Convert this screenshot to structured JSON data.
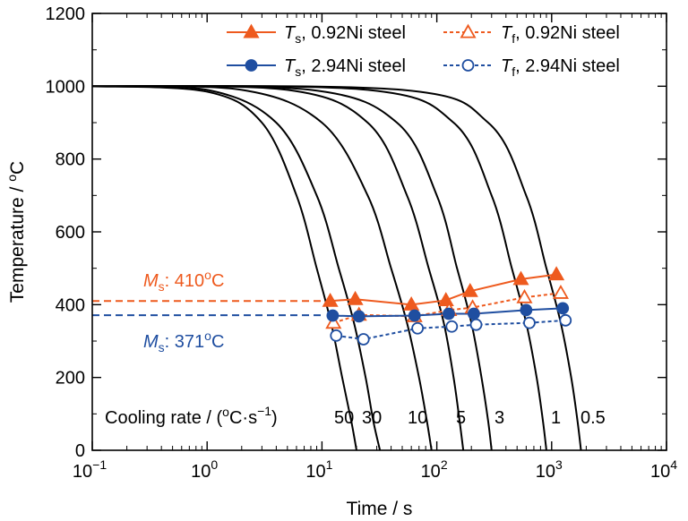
{
  "chart_data": {
    "type": "line",
    "x_scale": "log",
    "xlabel": "Time / s",
    "ylabel": "Temperature / °C",
    "xlim": [
      0.1,
      10000
    ],
    "ylim": [
      0,
      1200
    ],
    "x_ticks": [
      {
        "base": "10",
        "exp": "−1",
        "value": 0.1
      },
      {
        "base": "10",
        "exp": "0",
        "value": 1
      },
      {
        "base": "10",
        "exp": "1",
        "value": 10
      },
      {
        "base": "10",
        "exp": "2",
        "value": 100
      },
      {
        "base": "10",
        "exp": "3",
        "value": 1000
      },
      {
        "base": "10",
        "exp": "4",
        "value": 10000
      }
    ],
    "y_ticks": [
      "0",
      "200",
      "400",
      "600",
      "800",
      "1000",
      "1200"
    ],
    "grid": false,
    "legend_position": "top-right",
    "colors": {
      "steel_092": "#EE5A1E",
      "steel_294": "#1F4EA0",
      "curve": "#000000"
    },
    "legend": [
      {
        "sym": "T",
        "sub": "s",
        "text": ", 0.92Ni steel",
        "series": "ts_092"
      },
      {
        "sym": "T",
        "sub": "f",
        "text": ", 0.92Ni steel",
        "series": "tf_092"
      },
      {
        "sym": "T",
        "sub": "s",
        "text": ", 2.94Ni steel",
        "series": "ts_294"
      },
      {
        "sym": "T",
        "sub": "f",
        "text": ", 2.94Ni steel",
        "series": "tf_294"
      }
    ],
    "cooling_curves": [
      {
        "rate_label": "50",
        "points": [
          [
            0.1,
            1000
          ],
          [
            1,
            985
          ],
          [
            3,
            900
          ],
          [
            6,
            700
          ],
          [
            9,
            500
          ],
          [
            12,
            350
          ],
          [
            15,
            200
          ],
          [
            18,
            80
          ],
          [
            20,
            0
          ]
        ]
      },
      {
        "rate_label": "30",
        "points": [
          [
            0.1,
            1000
          ],
          [
            1,
            990
          ],
          [
            4,
            900
          ],
          [
            9,
            700
          ],
          [
            14,
            500
          ],
          [
            19,
            350
          ],
          [
            24,
            200
          ],
          [
            28,
            80
          ],
          [
            32,
            0
          ]
        ]
      },
      {
        "rate_label": "10",
        "points": [
          [
            0.1,
            1000
          ],
          [
            2,
            990
          ],
          [
            10,
            900
          ],
          [
            25,
            700
          ],
          [
            40,
            500
          ],
          [
            55,
            350
          ],
          [
            70,
            200
          ],
          [
            82,
            80
          ],
          [
            90,
            0
          ]
        ]
      },
      {
        "rate_label": "5",
        "points": [
          [
            0.1,
            1000
          ],
          [
            5,
            990
          ],
          [
            25,
            900
          ],
          [
            55,
            700
          ],
          [
            85,
            500
          ],
          [
            115,
            350
          ],
          [
            140,
            200
          ],
          [
            158,
            80
          ],
          [
            170,
            0
          ]
        ]
      },
      {
        "rate_label": "3",
        "points": [
          [
            0.1,
            1000
          ],
          [
            8,
            990
          ],
          [
            45,
            900
          ],
          [
            100,
            700
          ],
          [
            150,
            500
          ],
          [
            200,
            350
          ],
          [
            245,
            200
          ],
          [
            280,
            80
          ],
          [
            300,
            0
          ]
        ]
      },
      {
        "rate_label": "1",
        "points": [
          [
            0.1,
            1000
          ],
          [
            25,
            990
          ],
          [
            140,
            900
          ],
          [
            300,
            700
          ],
          [
            450,
            500
          ],
          [
            600,
            350
          ],
          [
            740,
            200
          ],
          [
            840,
            80
          ],
          [
            900,
            0
          ]
        ]
      },
      {
        "rate_label": "0.5",
        "points": [
          [
            0.1,
            1000
          ],
          [
            50,
            990
          ],
          [
            280,
            900
          ],
          [
            600,
            700
          ],
          [
            900,
            500
          ],
          [
            1200,
            350
          ],
          [
            1480,
            200
          ],
          [
            1680,
            80
          ],
          [
            1800,
            0
          ]
        ]
      }
    ],
    "cooling_rate_label": "Cooling rate / (°C·s",
    "cooling_rate_exp": "−1",
    "cooling_rate_close": ")",
    "series": [
      {
        "key": "ts_092",
        "name": "Ts, 0.92Ni steel",
        "color": "#EE5A1E",
        "marker": "triangle",
        "filled": true,
        "dashed": false,
        "points": [
          [
            11.8,
            410
          ],
          [
            19.5,
            415
          ],
          [
            60,
            400
          ],
          [
            120,
            412
          ],
          [
            195,
            437
          ],
          [
            540,
            470
          ],
          [
            1100,
            483
          ]
        ]
      },
      {
        "key": "tf_092",
        "name": "Tf, 0.92Ni steel",
        "color": "#EE5A1E",
        "marker": "triangle",
        "filled": false,
        "dashed": true,
        "points": [
          [
            12.6,
            350
          ],
          [
            21,
            372
          ],
          [
            64,
            368
          ],
          [
            128,
            385
          ],
          [
            205,
            392
          ],
          [
            580,
            420
          ],
          [
            1200,
            432
          ]
        ]
      },
      {
        "key": "ts_294",
        "name": "Ts, 2.94Ni steel",
        "color": "#1F4EA0",
        "marker": "circle",
        "filled": true,
        "dashed": false,
        "points": [
          [
            12.4,
            370
          ],
          [
            21,
            368
          ],
          [
            64,
            370
          ],
          [
            127,
            375
          ],
          [
            210,
            375
          ],
          [
            600,
            385
          ],
          [
            1250,
            390
          ]
        ]
      },
      {
        "key": "tf_294",
        "name": "Tf, 2.94Ni steel",
        "color": "#1F4EA0",
        "marker": "circle",
        "filled": false,
        "dashed": true,
        "points": [
          [
            13.3,
            315
          ],
          [
            23,
            305
          ],
          [
            68,
            335
          ],
          [
            135,
            340
          ],
          [
            220,
            345
          ],
          [
            640,
            350
          ],
          [
            1320,
            357
          ]
        ]
      }
    ],
    "ms_lines": [
      {
        "value": 410,
        "color": "#EE5A1E",
        "sym": "M",
        "sub": "s",
        "text": ": 410",
        "unit": "C",
        "deg": "o"
      },
      {
        "value": 371,
        "color": "#1F4EA0",
        "sym": "M",
        "sub": "s",
        "text": ": 371",
        "unit": "C",
        "deg": "o"
      }
    ]
  }
}
